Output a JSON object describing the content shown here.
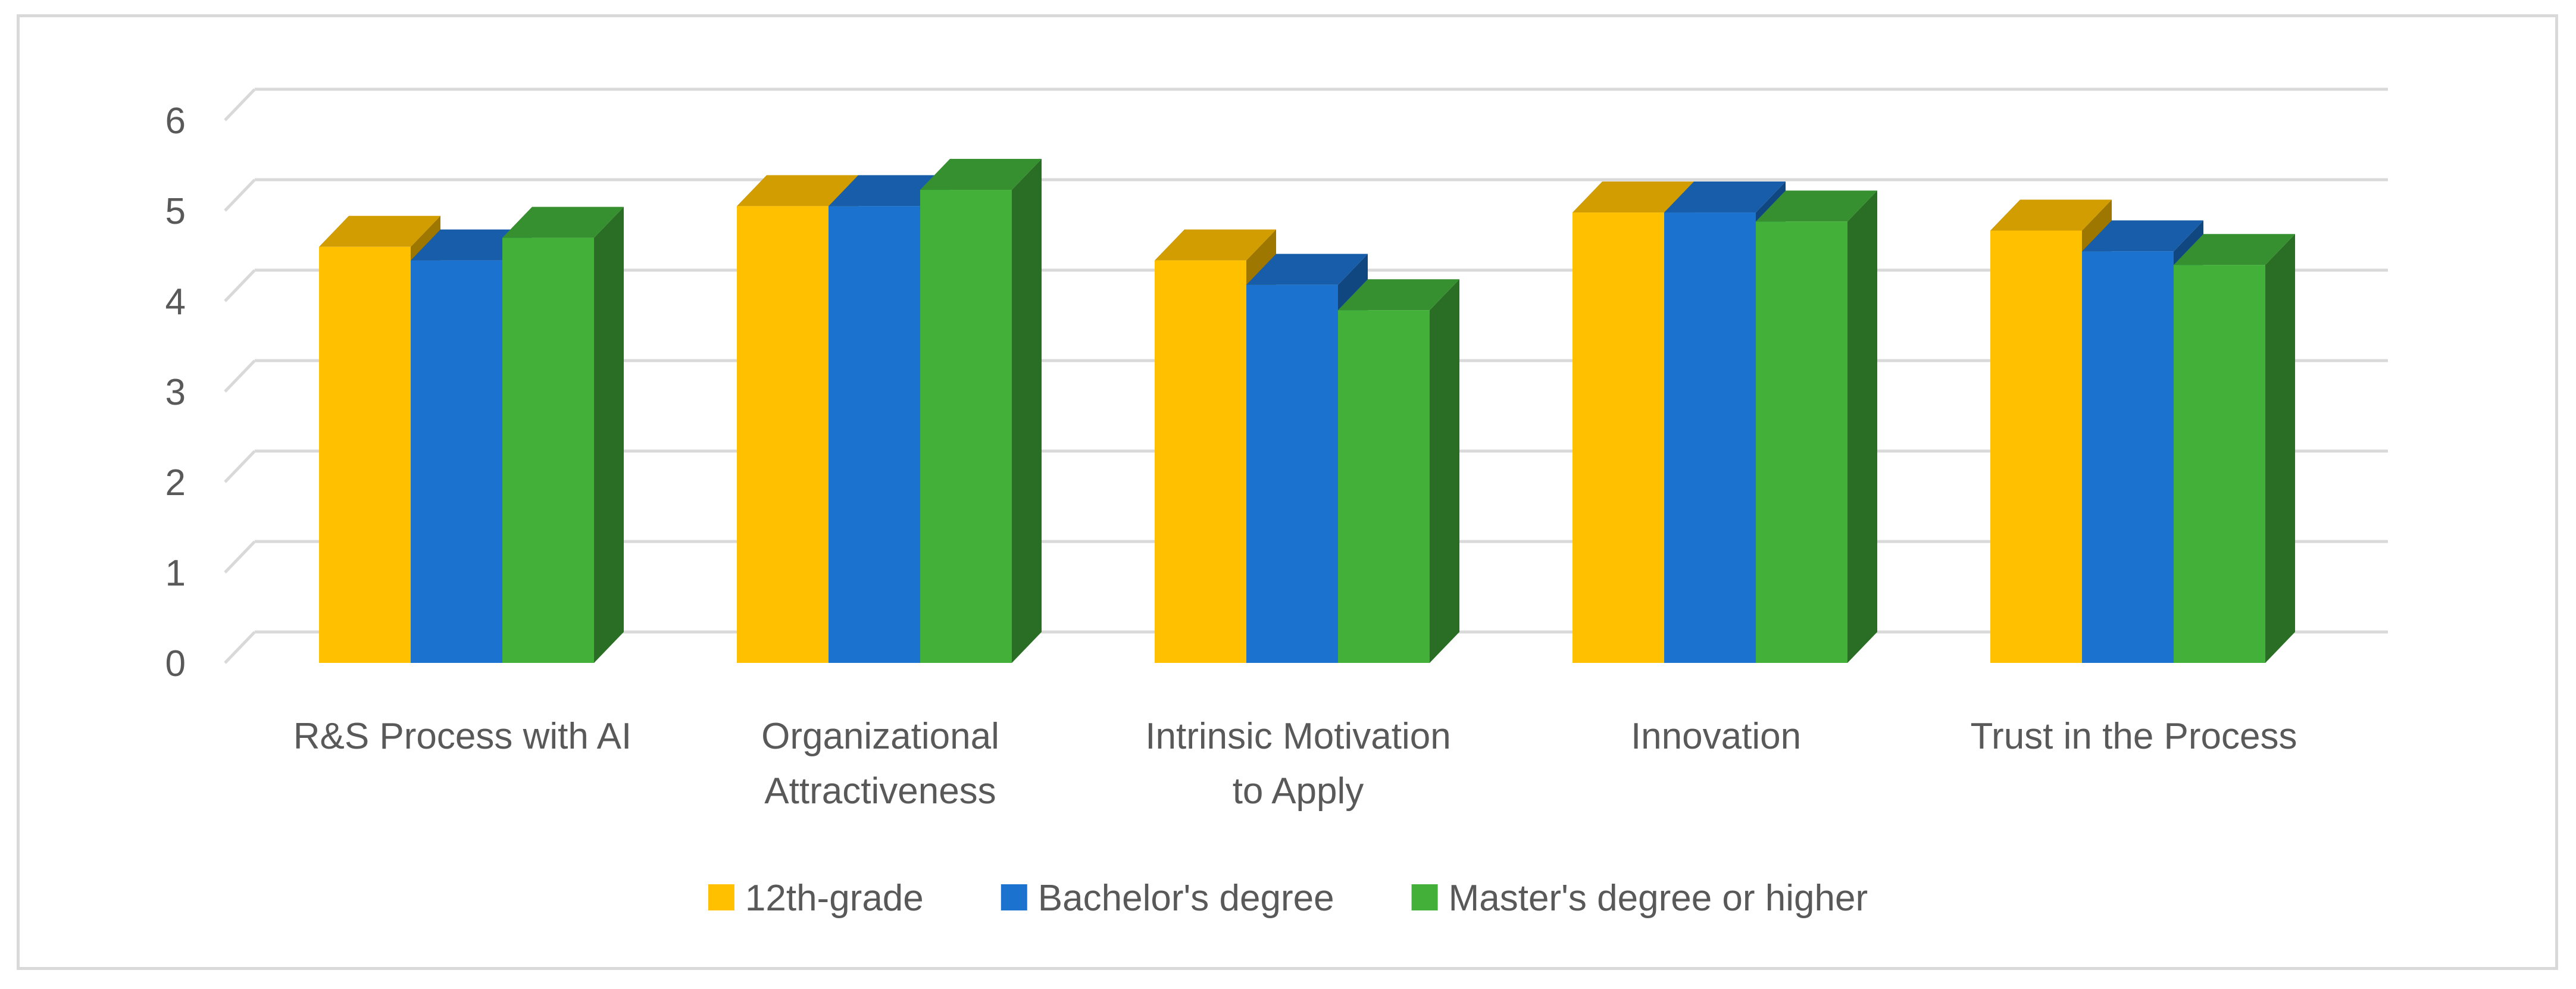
{
  "chart_data": {
    "type": "bar",
    "title": "",
    "xlabel": "",
    "ylabel": "",
    "ylim": [
      0,
      6
    ],
    "yticks": [
      0,
      1,
      2,
      3,
      4,
      5,
      6
    ],
    "grid": true,
    "legend_position": "bottom",
    "categories": [
      [
        "R&S Process with AI"
      ],
      [
        "Organizational",
        "Attractiveness"
      ],
      [
        "Intrinsic Motivation",
        "to Apply"
      ],
      [
        "Innovation"
      ],
      [
        "Trust in the Process"
      ]
    ],
    "series": [
      {
        "name": "12th-grade",
        "color": "#ffc000",
        "values": [
          4.6,
          5.05,
          4.45,
          4.98,
          4.78
        ]
      },
      {
        "name": "Bachelor's degree",
        "color": "#1c72cf",
        "values": [
          4.45,
          5.05,
          4.18,
          4.98,
          4.55
        ]
      },
      {
        "name": "Master's degree or higher",
        "color": "#43b03a",
        "values": [
          4.7,
          5.23,
          3.9,
          4.88,
          4.4
        ]
      }
    ]
  }
}
